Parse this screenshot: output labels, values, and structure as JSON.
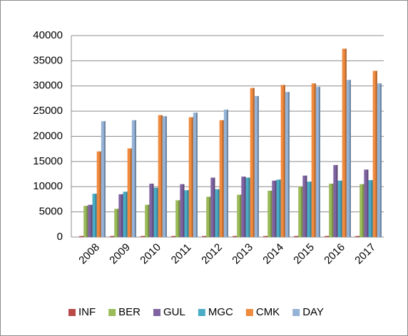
{
  "chart_data": {
    "type": "bar",
    "categories": [
      "2008",
      "2009",
      "2010",
      "2011",
      "2012",
      "2013",
      "2014",
      "2015",
      "2016",
      "2017"
    ],
    "series": [
      {
        "name": "INF",
        "color": "#b94a48",
        "values": [
          200,
          200,
          200,
          200,
          200,
          200,
          200,
          200,
          200,
          200
        ]
      },
      {
        "name": "BER",
        "color": "#9bbb59",
        "values": [
          6200,
          5600,
          6400,
          7300,
          8000,
          8400,
          9200,
          10000,
          10600,
          10500
        ]
      },
      {
        "name": "GUL",
        "color": "#8064a2",
        "values": [
          6400,
          8500,
          10600,
          10500,
          11800,
          12000,
          11200,
          12200,
          14300,
          13400
        ]
      },
      {
        "name": "MGC",
        "color": "#4bacc6",
        "values": [
          8600,
          9000,
          9800,
          9300,
          9500,
          11800,
          11400,
          11000,
          11200,
          11300
        ]
      },
      {
        "name": "CMK",
        "color": "#f08a3e",
        "values": [
          17000,
          17600,
          24200,
          23800,
          23200,
          29600,
          30200,
          30500,
          37400,
          33000
        ]
      },
      {
        "name": "DAY",
        "color": "#95b3d7",
        "values": [
          23000,
          23200,
          24000,
          24700,
          25300,
          28000,
          28800,
          29800,
          31200,
          30500
        ]
      }
    ],
    "ylim": [
      0,
      40000
    ],
    "yticks": [
      0,
      5000,
      10000,
      15000,
      20000,
      25000,
      30000,
      35000,
      40000
    ],
    "grid": true,
    "legend": "bottom"
  }
}
